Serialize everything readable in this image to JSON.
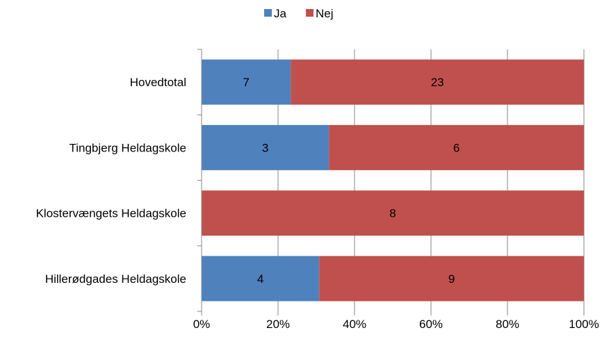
{
  "chart_data": {
    "type": "bar",
    "orientation": "horizontal",
    "stacked": "percent",
    "categories": [
      "Hovedtotal",
      "Tingbjerg Heldagskole",
      "Klostervængets Heldagskole",
      "Hillerødgades Heldagskole"
    ],
    "series": [
      {
        "name": "Ja",
        "values": [
          7,
          3,
          0,
          4
        ],
        "color": "#4F81BD"
      },
      {
        "name": "Nej",
        "values": [
          23,
          6,
          8,
          9
        ],
        "color": "#C0504D"
      }
    ],
    "xlim": [
      0,
      100
    ],
    "x_ticks": [
      "0%",
      "20%",
      "40%",
      "60%",
      "80%",
      "100%"
    ],
    "grid": true,
    "legend": "top"
  }
}
